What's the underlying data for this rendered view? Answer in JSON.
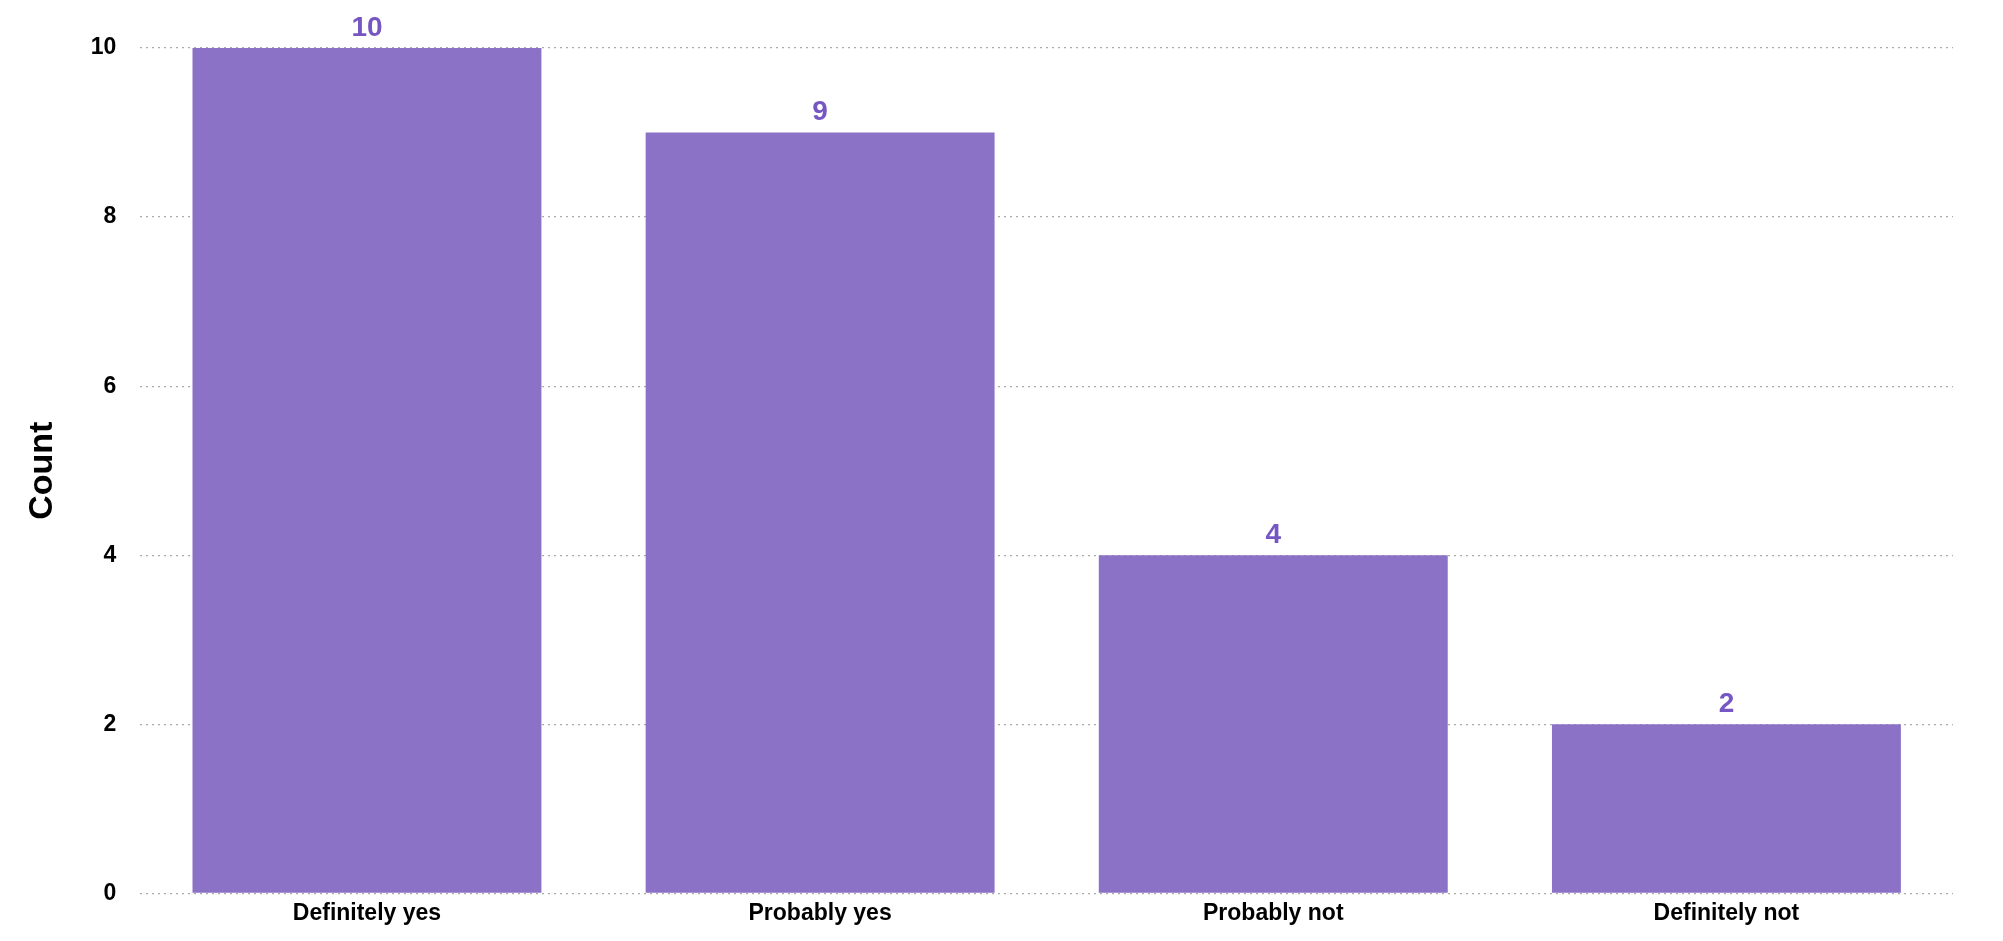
{
  "chart_data": {
    "type": "bar",
    "ylabel": "Count",
    "categories": [
      "Definitely yes",
      "Probably yes",
      "Probably not",
      "Definitely not"
    ],
    "values": [
      10,
      9,
      4,
      2
    ],
    "color": "#8b72c7",
    "ylim": [
      0,
      10
    ],
    "yticks": [
      0,
      2,
      4,
      6,
      8,
      10
    ],
    "grid": "y",
    "legend": false,
    "data_labels": true
  }
}
